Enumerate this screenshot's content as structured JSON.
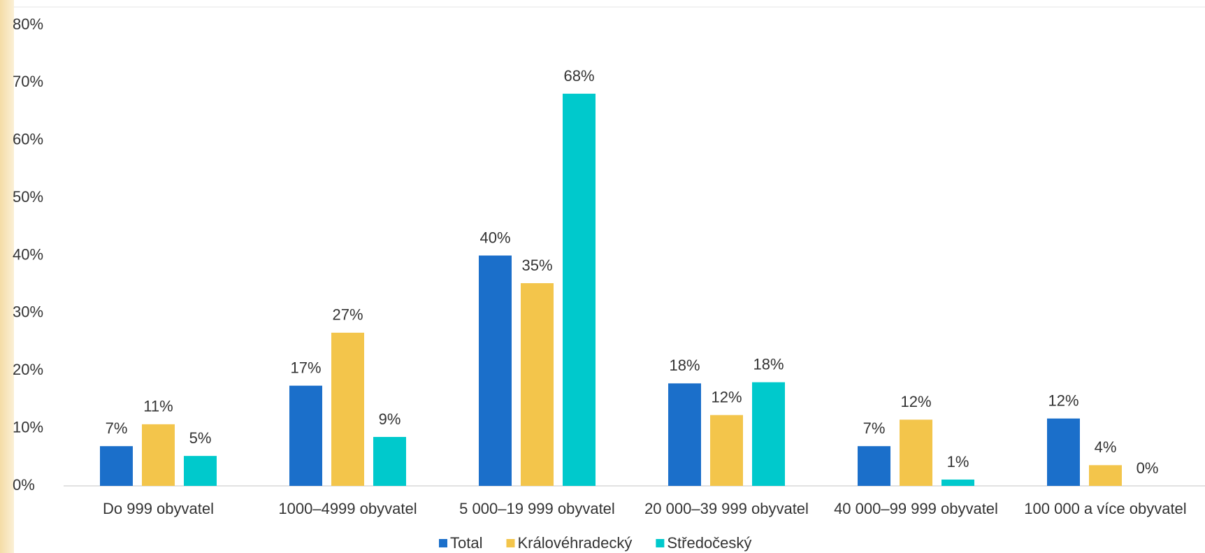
{
  "chart_data": {
    "type": "bar",
    "categories": [
      "Do 999 obyvatel",
      "1000–4999 obyvatel",
      "5 000–19 999 obyvatel",
      "20 000–39 999 obyvatel",
      "40 000–99 999 obyvatel",
      "100 000 a více obyvatel"
    ],
    "series": [
      {
        "name": "Total",
        "color": "#1b6fca",
        "values": [
          6.9,
          17.4,
          40,
          17.8,
          6.9,
          11.7
        ],
        "value_labels": [
          "7%",
          "17%",
          "40%",
          "18%",
          "7%",
          "12%"
        ]
      },
      {
        "name": "Královéhradecký",
        "color": "#f3c54b",
        "values": [
          10.7,
          26.6,
          35.2,
          12.3,
          11.5,
          3.6
        ],
        "value_labels": [
          "11%",
          "27%",
          "35%",
          "12%",
          "12%",
          "4%"
        ]
      },
      {
        "name": "Středočeský",
        "color": "#00c9cc",
        "values": [
          5.2,
          8.5,
          68.1,
          18,
          1.1,
          0
        ],
        "value_labels": [
          "5%",
          "9%",
          "68%",
          "18%",
          "1%",
          "0%"
        ]
      }
    ],
    "ylim": [
      0,
      80
    ],
    "yticks": [
      {
        "value": 0,
        "label": "0%"
      },
      {
        "value": 10,
        "label": "10%"
      },
      {
        "value": 20,
        "label": "20%"
      },
      {
        "value": 30,
        "label": "30%"
      },
      {
        "value": 40,
        "label": "40%"
      },
      {
        "value": 50,
        "label": "50%"
      },
      {
        "value": 60,
        "label": "60%"
      },
      {
        "value": 70,
        "label": "70%"
      },
      {
        "value": 80,
        "label": "80%"
      }
    ],
    "legend": "bottom"
  }
}
